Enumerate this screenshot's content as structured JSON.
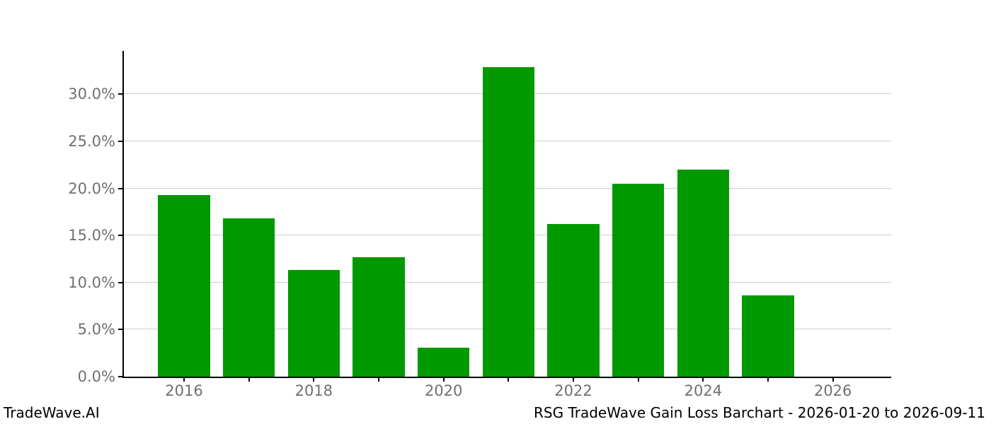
{
  "branding": "TradeWave.AI",
  "footer": {
    "left": "TradeWave.AI",
    "right": "RSG TradeWave Gain Loss Barchart - 2026-01-20 to 2026-09-11"
  },
  "chart_data": {
    "type": "bar",
    "title": "RSG TradeWave Gain Loss Barchart - 2026-01-20 to 2026-09-11",
    "xlabel": "",
    "ylabel": "",
    "categories": [
      "2016",
      "2017",
      "2018",
      "2019",
      "2020",
      "2021",
      "2022",
      "2023",
      "2024",
      "2025"
    ],
    "values": [
      19.3,
      16.8,
      11.3,
      12.7,
      3.1,
      32.9,
      16.2,
      20.5,
      22.0,
      8.6
    ],
    "unit": "percent",
    "ylim": [
      0,
      34.6
    ],
    "yticks": [
      0,
      5,
      10,
      15,
      20,
      25,
      30
    ],
    "ytick_labels": [
      "0.0%",
      "5.0%",
      "10.0%",
      "15.0%",
      "20.0%",
      "25.0%",
      "30.0%"
    ],
    "xtick_years": [
      2016,
      2017,
      2018,
      2019,
      2020,
      2021,
      2022,
      2023,
      2024,
      2025,
      2026
    ],
    "xtick_labeled_years": [
      "2016",
      "2018",
      "2020",
      "2022",
      "2024",
      "2026"
    ],
    "bar_color": "#009900",
    "grid": true,
    "gridline_color": "#cccccc",
    "tick_label_color": "#707070",
    "legend_position": "none"
  }
}
